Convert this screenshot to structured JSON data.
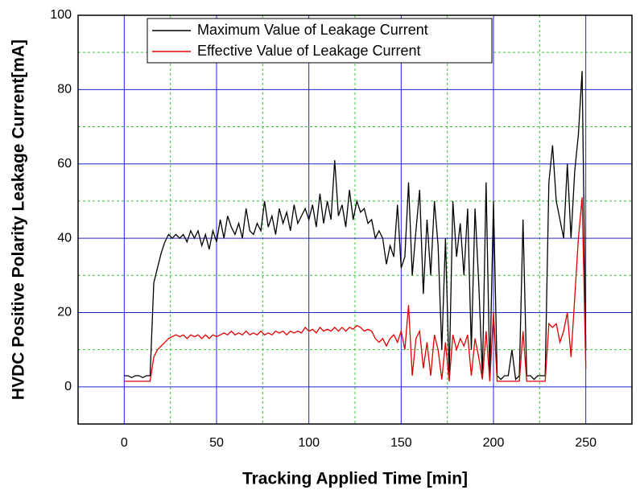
{
  "chart_data": {
    "type": "line",
    "xlabel": "Tracking Applied Time [min]",
    "ylabel": "HVDC Positive Polarity Leakage Current[mA]",
    "x": [
      0,
      2,
      4,
      6,
      8,
      10,
      12,
      14,
      16,
      18,
      20,
      22,
      24,
      26,
      28,
      30,
      32,
      34,
      36,
      38,
      40,
      42,
      44,
      46,
      48,
      50,
      52,
      54,
      56,
      58,
      60,
      62,
      64,
      66,
      68,
      70,
      72,
      74,
      76,
      78,
      80,
      82,
      84,
      86,
      88,
      90,
      92,
      94,
      96,
      98,
      100,
      102,
      104,
      106,
      108,
      110,
      112,
      114,
      116,
      118,
      120,
      122,
      124,
      126,
      128,
      130,
      132,
      134,
      136,
      138,
      140,
      142,
      144,
      146,
      148,
      150,
      152,
      154,
      156,
      158,
      160,
      162,
      164,
      166,
      168,
      170,
      172,
      174,
      176,
      178,
      180,
      182,
      184,
      186,
      188,
      190,
      192,
      194,
      196,
      198,
      200,
      202,
      204,
      206,
      208,
      210,
      212,
      214,
      216,
      218,
      220,
      222,
      224,
      226,
      228,
      230,
      232,
      234,
      236,
      238,
      240,
      242,
      244,
      246,
      248,
      250
    ],
    "series": [
      {
        "name": "Maximum Value of Leakage Current",
        "color": "#000000",
        "values": [
          3,
          3,
          2.5,
          3,
          3,
          2.5,
          3,
          3,
          28,
          32,
          36,
          39,
          41,
          40,
          41,
          40,
          41,
          39,
          42,
          40,
          42,
          38,
          41,
          37,
          42,
          39,
          45,
          40,
          46,
          43,
          41,
          44,
          40,
          48,
          42,
          41,
          44,
          42,
          50,
          43,
          46,
          41,
          48,
          44,
          47,
          42,
          49,
          44,
          46,
          48,
          45,
          49,
          43,
          52,
          44,
          50,
          45,
          61,
          46,
          49,
          43,
          53,
          45,
          50,
          47,
          48,
          44,
          45,
          40,
          42,
          40,
          33,
          38,
          35,
          49,
          32,
          35,
          55,
          30,
          42,
          53,
          25,
          45,
          30,
          50,
          38,
          10,
          40,
          3,
          50,
          35,
          44,
          30,
          48,
          10,
          48,
          28,
          3,
          55,
          3,
          50,
          3,
          2,
          3,
          3,
          10,
          2,
          3,
          45,
          3,
          3,
          2,
          3,
          3,
          3,
          55,
          65,
          50,
          45,
          40,
          60,
          40,
          58,
          68,
          85,
          10
        ]
      },
      {
        "name": "Effective Value of Leakage Current",
        "color": "#e00000",
        "values": [
          1.5,
          1.5,
          1.5,
          1.5,
          1.5,
          1.5,
          1.5,
          1.5,
          8,
          10,
          11,
          12,
          13,
          13.5,
          14,
          13.5,
          14,
          13,
          14,
          13.5,
          14,
          13,
          14,
          13,
          14,
          13.5,
          14,
          14.5,
          14,
          15,
          14,
          14.5,
          14,
          15,
          14,
          14.5,
          14,
          15,
          14,
          14.5,
          14,
          15,
          14.5,
          15,
          14,
          15,
          14.5,
          15,
          14.5,
          16,
          15,
          15.5,
          14.5,
          16,
          15,
          15.5,
          15,
          16,
          15,
          16,
          15,
          16,
          15.5,
          16.5,
          16,
          15,
          15.5,
          15,
          13,
          12,
          13,
          11,
          13,
          14,
          12,
          15,
          10,
          22,
          3,
          13,
          15,
          5,
          12,
          3,
          14,
          10,
          2,
          12,
          1.5,
          14,
          10,
          13,
          11,
          14,
          3,
          13,
          8,
          2,
          15,
          1.5,
          20,
          1.5,
          1.5,
          1.5,
          1.5,
          1.5,
          1.5,
          1.5,
          15,
          1.5,
          1.5,
          1.5,
          1.5,
          1.5,
          1.5,
          17,
          16,
          17,
          12,
          15,
          20,
          8,
          24,
          40,
          51,
          5
        ]
      }
    ],
    "xlim": [
      -25,
      275
    ],
    "ylim": [
      -10,
      100
    ],
    "xticks": [
      0,
      50,
      100,
      150,
      200,
      250
    ],
    "yticks": [
      0,
      20,
      40,
      60,
      80,
      100
    ],
    "xticks_minor": [
      25,
      75,
      125,
      175,
      225
    ],
    "yticks_minor": [
      10,
      30,
      50,
      70,
      90
    ],
    "grid": true,
    "legend": "upper left"
  }
}
